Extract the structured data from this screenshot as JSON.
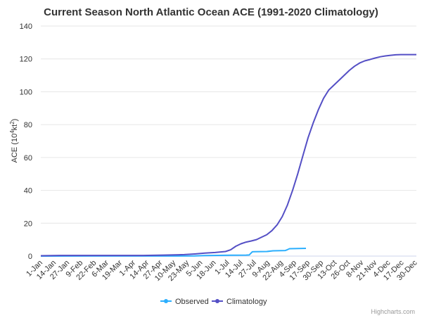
{
  "chart_data": {
    "type": "line",
    "title": "Current Season North Atlantic Ocean ACE (1991-2020 Climatology)",
    "ylabel": "ACE (10",
    "ylabel_sup": "4",
    "ylabel_mid": "kt",
    "ylabel_sup2": "2",
    "ylabel_end": ")",
    "ylim": [
      0,
      140
    ],
    "yticks": [
      0,
      20,
      40,
      60,
      80,
      100,
      120,
      140
    ],
    "xlim": [
      1,
      365
    ],
    "xticks": [
      {
        "label": "1-Jan",
        "day": 1
      },
      {
        "label": "14-Jan",
        "day": 14
      },
      {
        "label": "27-Jan",
        "day": 27
      },
      {
        "label": "9-Feb",
        "day": 40
      },
      {
        "label": "22-Feb",
        "day": 53
      },
      {
        "label": "6-Mar",
        "day": 65
      },
      {
        "label": "19-Mar",
        "day": 78
      },
      {
        "label": "1-Apr",
        "day": 91
      },
      {
        "label": "14-Apr",
        "day": 104
      },
      {
        "label": "27-Apr",
        "day": 117
      },
      {
        "label": "10-May",
        "day": 130
      },
      {
        "label": "23-May",
        "day": 143
      },
      {
        "label": "5-Jun",
        "day": 156
      },
      {
        "label": "18-Jun",
        "day": 169
      },
      {
        "label": "1-Jul",
        "day": 182
      },
      {
        "label": "14-Jul",
        "day": 195
      },
      {
        "label": "27-Jul",
        "day": 208
      },
      {
        "label": "9-Aug",
        "day": 221
      },
      {
        "label": "22-Aug",
        "day": 234
      },
      {
        "label": "4-Sep",
        "day": 247
      },
      {
        "label": "17-Sep",
        "day": 260
      },
      {
        "label": "30-Sep",
        "day": 273
      },
      {
        "label": "13-Oct",
        "day": 286
      },
      {
        "label": "26-Oct",
        "day": 299
      },
      {
        "label": "8-Nov",
        "day": 312
      },
      {
        "label": "21-Nov",
        "day": 325
      },
      {
        "label": "4-Dec",
        "day": 338
      },
      {
        "label": "17-Dec",
        "day": 351
      },
      {
        "label": "30-Dec",
        "day": 364
      }
    ],
    "grid": true,
    "legend_position": "bottom-center",
    "series": [
      {
        "name": "Observed",
        "color": "#2caffe",
        "points": [
          [
            1,
            0
          ],
          [
            150,
            0.1
          ],
          [
            160,
            0.3
          ],
          [
            185,
            0.5
          ],
          [
            200,
            0.6
          ],
          [
            203,
            0.7
          ],
          [
            206,
            2.6
          ],
          [
            208,
            2.7
          ],
          [
            220,
            2.8
          ],
          [
            226,
            3.2
          ],
          [
            238,
            3.4
          ],
          [
            240,
            3.9
          ],
          [
            242,
            4.5
          ],
          [
            258,
            4.7
          ]
        ]
      },
      {
        "name": "Climatology",
        "color": "#544fc5",
        "points": [
          [
            1,
            0.2
          ],
          [
            20,
            0.4
          ],
          [
            60,
            0.4
          ],
          [
            100,
            0.4
          ],
          [
            120,
            0.6
          ],
          [
            140,
            0.9
          ],
          [
            150,
            1.3
          ],
          [
            160,
            1.8
          ],
          [
            170,
            2.2
          ],
          [
            180,
            2.8
          ],
          [
            185,
            3.8
          ],
          [
            190,
            6.0
          ],
          [
            195,
            7.5
          ],
          [
            200,
            8.5
          ],
          [
            205,
            9.2
          ],
          [
            210,
            10.0
          ],
          [
            215,
            11.5
          ],
          [
            220,
            13.0
          ],
          [
            225,
            15.5
          ],
          [
            230,
            19.0
          ],
          [
            235,
            24.0
          ],
          [
            240,
            31.0
          ],
          [
            245,
            40.0
          ],
          [
            250,
            50.0
          ],
          [
            255,
            61.0
          ],
          [
            260,
            72.0
          ],
          [
            265,
            81.0
          ],
          [
            270,
            89.0
          ],
          [
            275,
            96.0
          ],
          [
            280,
            101.0
          ],
          [
            285,
            104.0
          ],
          [
            290,
            107.0
          ],
          [
            295,
            110.0
          ],
          [
            300,
            113.0
          ],
          [
            305,
            115.5
          ],
          [
            310,
            117.5
          ],
          [
            315,
            118.8
          ],
          [
            320,
            119.6
          ],
          [
            325,
            120.5
          ],
          [
            330,
            121.3
          ],
          [
            335,
            121.8
          ],
          [
            340,
            122.2
          ],
          [
            345,
            122.5
          ],
          [
            350,
            122.6
          ],
          [
            360,
            122.6
          ],
          [
            365,
            122.6
          ]
        ]
      }
    ]
  },
  "credit": "Highcharts.com"
}
